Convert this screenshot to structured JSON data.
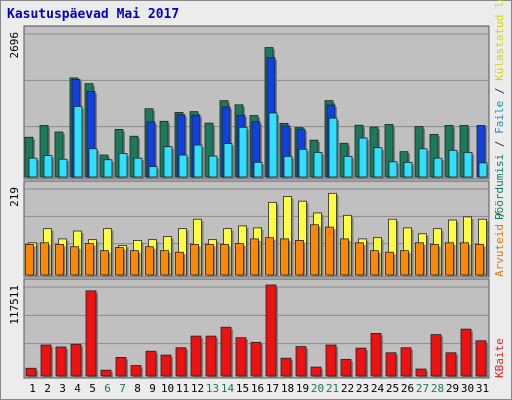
{
  "title": "Kasutuspäevad Mai 2017",
  "right_labels": {
    "top_parts": [
      {
        "text": "Pöördumisi",
        "color": "#0f7f5f"
      },
      {
        "text": " / ",
        "color": "#333333"
      },
      {
        "text": "Faile",
        "color": "#1e8fb0"
      },
      {
        "text": " / ",
        "color": "#333333"
      },
      {
        "text": "Külastatud lehti",
        "color": "#d8d400"
      }
    ],
    "middle_parts": [
      {
        "text": "Arvuteid",
        "color": "#e07800"
      },
      {
        "text": " / ",
        "color": "#333333"
      }
    ],
    "bottom_parts": [
      {
        "text": "KBaite",
        "color": "#e02020"
      }
    ]
  },
  "colors": {
    "panel_bg": "#c0c0c0",
    "hits": "#1a7a5a",
    "files": "#1040e0",
    "visits": "#30e0ff",
    "pages": "#ffff40",
    "hosts": "#ff8800",
    "kbytes": "#ee1111",
    "weekday_label": "#000000",
    "weekend_label": "#1a7a5a"
  },
  "chart_data": [
    {
      "type": "bar",
      "name": "top",
      "ymax_label": "2696",
      "ymax": 2696,
      "categories": [
        "1",
        "2",
        "3",
        "4",
        "5",
        "6",
        "7",
        "8",
        "9",
        "10",
        "11",
        "12",
        "13",
        "14",
        "15",
        "16",
        "17",
        "18",
        "19",
        "20",
        "21",
        "22",
        "23",
        "24",
        "25",
        "26",
        "27",
        "28",
        "29",
        "30",
        "31"
      ],
      "series": [
        {
          "name": "Pöördumisi",
          "values": [
            760,
            985,
            860,
            1895,
            1785,
            420,
            910,
            780,
            1305,
            1065,
            1235,
            1250,
            1030,
            1460,
            1380,
            1175,
            2475,
            1025,
            945,
            705,
            1460,
            645,
            990,
            955,
            1005,
            485,
            965,
            815,
            985,
            985,
            0
          ]
        },
        {
          "name": "Faile",
          "values": [
            0,
            0,
            0,
            1865,
            1635,
            0,
            0,
            0,
            1055,
            0,
            1190,
            1180,
            0,
            1340,
            1180,
            1055,
            2280,
            975,
            915,
            0,
            1375,
            0,
            0,
            0,
            0,
            0,
            0,
            0,
            0,
            0,
            985
          ]
        },
        {
          "name": "Külastatud lehti",
          "values": [
            360,
            410,
            340,
            1350,
            540,
            330,
            450,
            360,
            200,
            580,
            420,
            610,
            400,
            640,
            950,
            280,
            1225,
            395,
            530,
            470,
            1125,
            395,
            745,
            560,
            290,
            280,
            540,
            360,
            510,
            470,
            270
          ]
        }
      ]
    },
    {
      "type": "bar",
      "name": "middle",
      "ymax_label": "219",
      "ymax": 219,
      "categories": [
        "1",
        "2",
        "3",
        "4",
        "5",
        "6",
        "7",
        "8",
        "9",
        "10",
        "11",
        "12",
        "13",
        "14",
        "15",
        "16",
        "17",
        "18",
        "19",
        "20",
        "21",
        "22",
        "23",
        "24",
        "25",
        "26",
        "27",
        "28",
        "29",
        "30",
        "31"
      ],
      "series": [
        {
          "name": "Külastatud lehti",
          "values": [
            82,
            118,
            92,
            112,
            90,
            118,
            75,
            88,
            90,
            98,
            118,
            142,
            90,
            118,
            125,
            120,
            185,
            200,
            188,
            158,
            208,
            152,
            92,
            95,
            142,
            120,
            105,
            118,
            140,
            148,
            142
          ]
        },
        {
          "name": "Arvuteid",
          "values": [
            78,
            82,
            78,
            72,
            80,
            62,
            70,
            62,
            72,
            62,
            58,
            78,
            78,
            78,
            80,
            92,
            95,
            92,
            88,
            128,
            122,
            92,
            82,
            62,
            58,
            62,
            82,
            78,
            82,
            82,
            78
          ]
        }
      ]
    },
    {
      "type": "bar",
      "name": "bottom",
      "ymax_label": "117511",
      "ymax": 117511,
      "categories": [
        "1",
        "2",
        "3",
        "4",
        "5",
        "6",
        "7",
        "8",
        "9",
        "10",
        "11",
        "12",
        "13",
        "14",
        "15",
        "16",
        "17",
        "18",
        "19",
        "20",
        "21",
        "22",
        "23",
        "24",
        "25",
        "26",
        "27",
        "28",
        "29",
        "30",
        "31"
      ],
      "series": [
        {
          "name": "KBaite",
          "values": [
            10000,
            40000,
            37500,
            41000,
            110000,
            7500,
            24000,
            13500,
            32000,
            27000,
            36500,
            51500,
            51500,
            63000,
            49500,
            43500,
            117511,
            23000,
            38000,
            11500,
            40000,
            21500,
            36000,
            55000,
            30000,
            36500,
            9000,
            53500,
            30000,
            60500,
            45500
          ]
        }
      ]
    }
  ],
  "x_labels": [
    {
      "text": "1",
      "weekend": false
    },
    {
      "text": "2",
      "weekend": false
    },
    {
      "text": "3",
      "weekend": false
    },
    {
      "text": "4",
      "weekend": false
    },
    {
      "text": "5",
      "weekend": false
    },
    {
      "text": "6",
      "weekend": true
    },
    {
      "text": "7",
      "weekend": true
    },
    {
      "text": "8",
      "weekend": false
    },
    {
      "text": "9",
      "weekend": false
    },
    {
      "text": "10",
      "weekend": false
    },
    {
      "text": "11",
      "weekend": false
    },
    {
      "text": "12",
      "weekend": false
    },
    {
      "text": "13",
      "weekend": true
    },
    {
      "text": "14",
      "weekend": true
    },
    {
      "text": "15",
      "weekend": false
    },
    {
      "text": "16",
      "weekend": false
    },
    {
      "text": "17",
      "weekend": false
    },
    {
      "text": "18",
      "weekend": false
    },
    {
      "text": "19",
      "weekend": false
    },
    {
      "text": "20",
      "weekend": true
    },
    {
      "text": "21",
      "weekend": true
    },
    {
      "text": "22",
      "weekend": false
    },
    {
      "text": "23",
      "weekend": false
    },
    {
      "text": "24",
      "weekend": false
    },
    {
      "text": "25",
      "weekend": false
    },
    {
      "text": "26",
      "weekend": false
    },
    {
      "text": "27",
      "weekend": true
    },
    {
      "text": "28",
      "weekend": true
    },
    {
      "text": "29",
      "weekend": false
    },
    {
      "text": "30",
      "weekend": false
    },
    {
      "text": "31",
      "weekend": false
    }
  ]
}
